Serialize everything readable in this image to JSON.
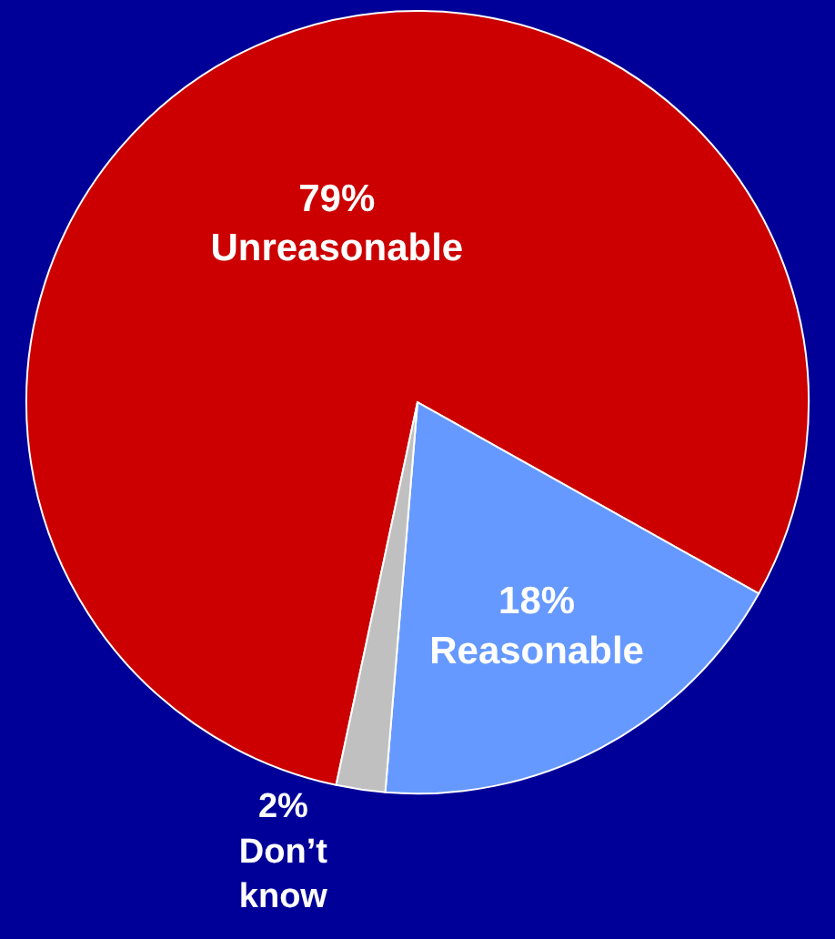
{
  "chart_data": {
    "type": "pie",
    "categories": [
      "Unreasonable",
      "Reasonable",
      "Don’t know"
    ],
    "values": [
      79,
      18,
      2
    ],
    "value_labels": [
      "79%",
      "18%",
      "2%"
    ],
    "colors": [
      "#cc0000",
      "#6699ff",
      "#c0c0c0"
    ]
  }
}
